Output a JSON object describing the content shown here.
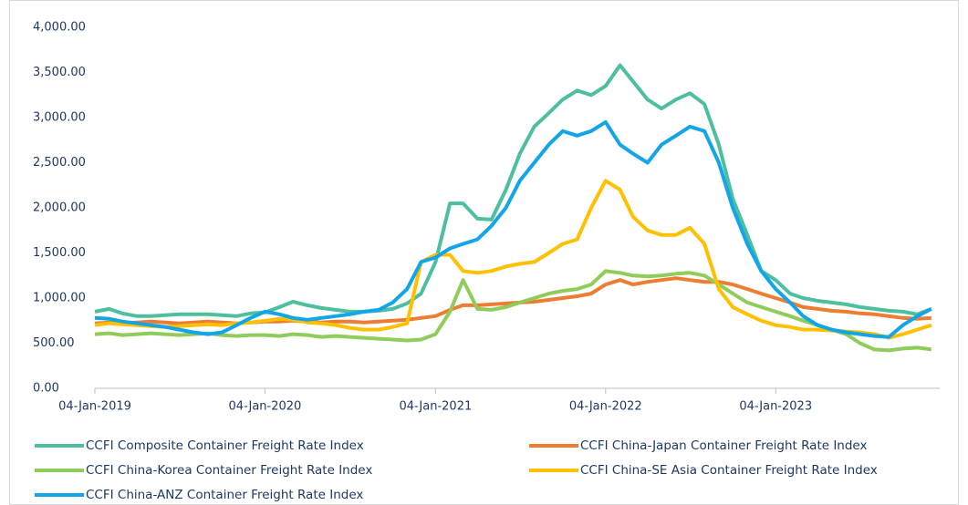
{
  "chart_data": {
    "type": "line",
    "x": [
      "2019-01-04",
      "2019-02-04",
      "2019-03-04",
      "2019-04-04",
      "2019-05-04",
      "2019-06-04",
      "2019-07-04",
      "2019-08-04",
      "2019-09-04",
      "2019-10-04",
      "2019-11-04",
      "2019-12-04",
      "2020-01-04",
      "2020-02-04",
      "2020-03-04",
      "2020-04-04",
      "2020-05-04",
      "2020-06-04",
      "2020-07-04",
      "2020-08-04",
      "2020-09-04",
      "2020-10-04",
      "2020-11-04",
      "2020-12-04",
      "2021-01-04",
      "2021-02-04",
      "2021-03-04",
      "2021-04-04",
      "2021-05-04",
      "2021-06-04",
      "2021-07-04",
      "2021-08-04",
      "2021-09-04",
      "2021-10-04",
      "2021-11-04",
      "2021-12-04",
      "2022-01-04",
      "2022-02-04",
      "2022-03-04",
      "2022-04-04",
      "2022-05-04",
      "2022-06-04",
      "2022-07-04",
      "2022-08-04",
      "2022-09-04",
      "2022-10-04",
      "2022-11-04",
      "2022-12-04",
      "2023-01-04",
      "2023-02-04",
      "2023-03-04",
      "2023-04-04",
      "2023-05-04",
      "2023-06-04",
      "2023-07-04",
      "2023-08-04",
      "2023-09-04",
      "2023-10-04",
      "2023-11-04",
      "2023-12-04"
    ],
    "series": [
      {
        "name": "CCFI Composite Container Freight Rate Index",
        "color": "#4dbf9f",
        "values": [
          850,
          880,
          830,
          800,
          800,
          810,
          820,
          820,
          820,
          810,
          800,
          830,
          840,
          900,
          960,
          920,
          890,
          870,
          850,
          850,
          860,
          880,
          940,
          1050,
          1400,
          2050,
          2050,
          1880,
          1870,
          2200,
          2600,
          2900,
          3050,
          3200,
          3300,
          3250,
          3350,
          3580,
          3400,
          3200,
          3100,
          3200,
          3270,
          3150,
          2700,
          2100,
          1700,
          1300,
          1200,
          1050,
          1000,
          970,
          950,
          930,
          900,
          880,
          860,
          850,
          820,
          880
        ]
      },
      {
        "name": "CCFI China-Japan Container Freight Rate Index",
        "color": "#ed7d31",
        "values": [
          720,
          730,
          720,
          730,
          740,
          730,
          720,
          730,
          740,
          730,
          720,
          730,
          740,
          740,
          750,
          740,
          730,
          740,
          740,
          730,
          740,
          750,
          760,
          780,
          800,
          870,
          920,
          920,
          930,
          940,
          950,
          960,
          980,
          1000,
          1020,
          1050,
          1150,
          1200,
          1150,
          1180,
          1200,
          1220,
          1200,
          1180,
          1180,
          1150,
          1100,
          1050,
          1000,
          950,
          900,
          880,
          860,
          850,
          830,
          820,
          800,
          780,
          770,
          780
        ]
      },
      {
        "name": "CCFI China-Korea Container Freight Rate Index",
        "color": "#8fcc5a",
        "values": [
          600,
          610,
          590,
          600,
          610,
          600,
          590,
          600,
          610,
          590,
          580,
          590,
          590,
          580,
          600,
          590,
          570,
          580,
          570,
          560,
          550,
          540,
          530,
          540,
          600,
          850,
          1200,
          880,
          870,
          900,
          950,
          1000,
          1050,
          1080,
          1100,
          1150,
          1300,
          1280,
          1250,
          1240,
          1250,
          1270,
          1280,
          1250,
          1150,
          1050,
          950,
          900,
          850,
          800,
          750,
          700,
          650,
          600,
          500,
          430,
          420,
          440,
          450,
          430
        ]
      },
      {
        "name": "CCFI China-SE Asia Container Freight Rate Index",
        "color": "#ffc000",
        "values": [
          700,
          720,
          710,
          700,
          690,
          680,
          690,
          700,
          710,
          700,
          720,
          730,
          750,
          770,
          760,
          730,
          720,
          700,
          670,
          650,
          650,
          680,
          720,
          1400,
          1480,
          1480,
          1300,
          1280,
          1300,
          1350,
          1380,
          1400,
          1500,
          1600,
          1650,
          2000,
          2300,
          2200,
          1900,
          1750,
          1700,
          1700,
          1780,
          1600,
          1100,
          900,
          820,
          750,
          700,
          680,
          650,
          650,
          640,
          630,
          620,
          600,
          560,
          600,
          650,
          700
        ]
      },
      {
        "name": "CCFI China-ANZ Container Freight Rate Index",
        "color": "#12a5e8",
        "values": [
          780,
          770,
          740,
          720,
          700,
          680,
          650,
          620,
          600,
          620,
          700,
          780,
          850,
          820,
          780,
          760,
          780,
          800,
          820,
          850,
          870,
          950,
          1100,
          1400,
          1450,
          1550,
          1600,
          1650,
          1800,
          2000,
          2300,
          2500,
          2700,
          2850,
          2800,
          2850,
          2950,
          2700,
          2600,
          2500,
          2700,
          2800,
          2900,
          2850,
          2500,
          2000,
          1600,
          1300,
          1100,
          950,
          800,
          700,
          650,
          620,
          600,
          580,
          570,
          700,
          800,
          880
        ]
      }
    ],
    "xlim": [
      "2019-01-04",
      "2023-12-22"
    ],
    "xticks": [
      {
        "value": "2019-01-04",
        "label": "04-Jan-2019"
      },
      {
        "value": "2020-01-04",
        "label": "04-Jan-2020"
      },
      {
        "value": "2021-01-04",
        "label": "04-Jan-2021"
      },
      {
        "value": "2022-01-04",
        "label": "04-Jan-2022"
      },
      {
        "value": "2023-01-04",
        "label": "04-Jan-2023"
      }
    ],
    "ylim": [
      0,
      4000
    ],
    "yticks": [
      {
        "value": 0,
        "label": "0.00"
      },
      {
        "value": 500,
        "label": "500.00"
      },
      {
        "value": 1000,
        "label": "1,000.00"
      },
      {
        "value": 1500,
        "label": "1,500.00"
      },
      {
        "value": 2000,
        "label": "2,000.00"
      },
      {
        "value": 2500,
        "label": "2,500.00"
      },
      {
        "value": 3000,
        "label": "3,000.00"
      },
      {
        "value": 3500,
        "label": "3,500.00"
      },
      {
        "value": 4000,
        "label": "4,000.00"
      }
    ]
  }
}
